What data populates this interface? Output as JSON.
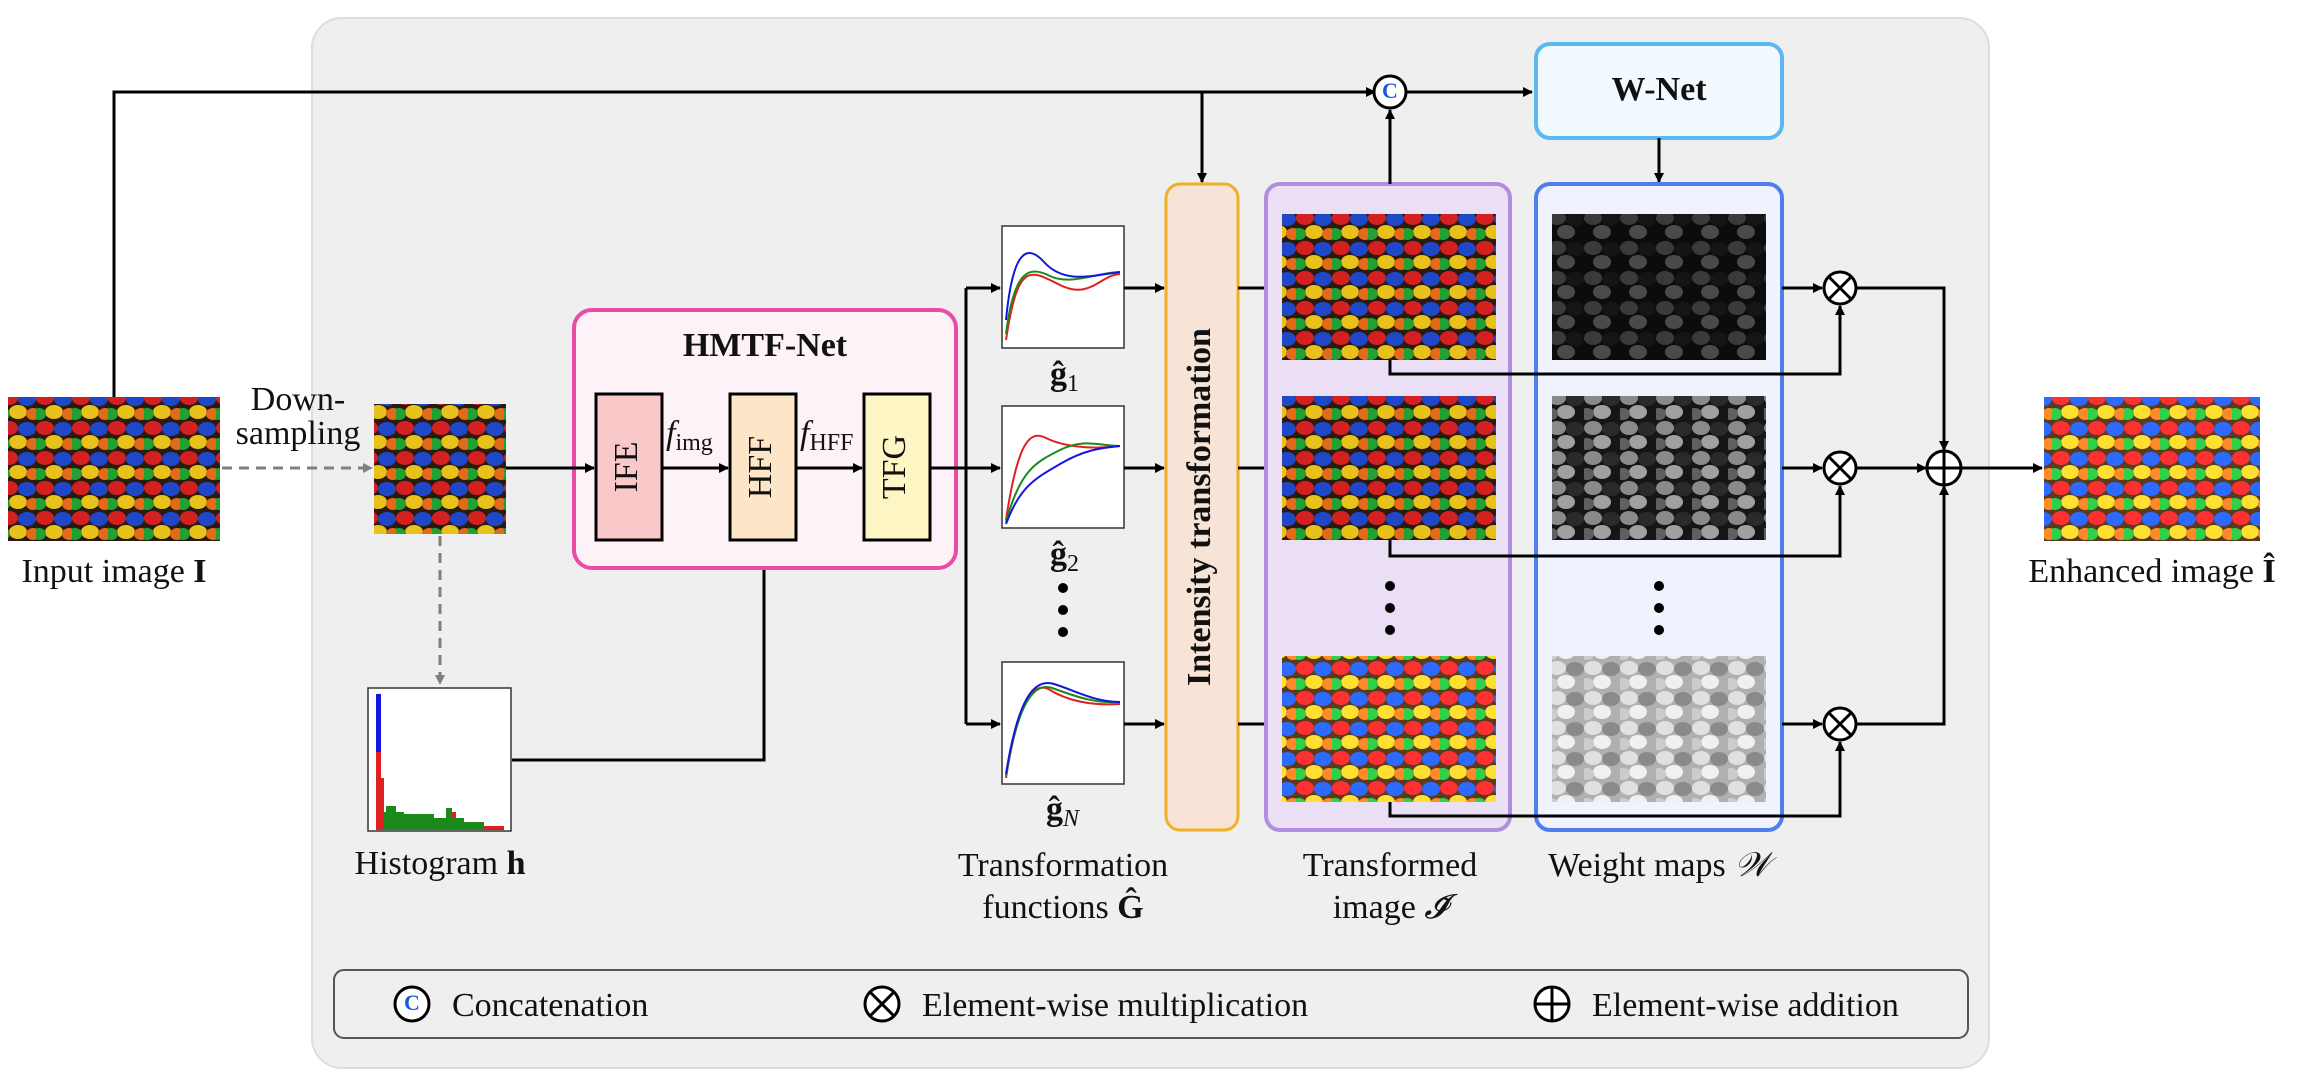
{
  "input": {
    "label": "Input image ",
    "symbol": "I"
  },
  "downsampling": {
    "line1": "Down-",
    "line2": "sampling"
  },
  "histogram": {
    "label": "Histogram ",
    "symbol": "h"
  },
  "hmtf": {
    "title": "HMTF-Net",
    "ife": "IFE",
    "hff": "HFF",
    "tfg": "TFG",
    "f_img": {
      "f": "f",
      "sub": "img"
    },
    "f_hff": {
      "f": "f",
      "sub": "HFF"
    }
  },
  "functions": {
    "g1": {
      "g": "ĝ",
      "sub": "1"
    },
    "g2": {
      "g": "ĝ",
      "sub": "2"
    },
    "gN": {
      "g": "ĝ",
      "sub": "N"
    },
    "line1": "Transformation",
    "line2": "functions ",
    "symbol": "Ĝ"
  },
  "intensity": {
    "label": "Intensity transformation"
  },
  "transformed": {
    "line1": "Transformed",
    "line2": "image ",
    "symbol": "𝓘̃"
  },
  "wnet": {
    "label": "W-Net"
  },
  "weights": {
    "label": "Weight maps ",
    "symbol": "𝒲"
  },
  "enhanced": {
    "label": "Enhanced image ",
    "symbol": "Î"
  },
  "concat_symbol": "C",
  "legend": {
    "concat": "Concatenation",
    "mult": "Element-wise multiplication",
    "add": "Element-wise addition"
  },
  "colors": {
    "panel_bg": "#efefef",
    "hmtf_border": "#e94ba6",
    "hmtf_bg": "#fdf2f8",
    "ife_fill": "#f9c9ca",
    "hff_fill": "#fde6c8",
    "tfg_fill": "#fdf6c4",
    "intensity_border": "#f0b023",
    "intensity_fill": "#f7e4d6",
    "transformed_border": "#b18ddf",
    "transformed_fill": "#eadff4",
    "weight_border": "#4d7ff0",
    "weight_fill": "#f0f2fd",
    "wnet_border": "#5cb8f0",
    "curve_red": "#e02020",
    "curve_green": "#1a8a1a",
    "curve_blue": "#1515e0",
    "arrow": "#000000",
    "dashed_arrow": "#808080"
  }
}
